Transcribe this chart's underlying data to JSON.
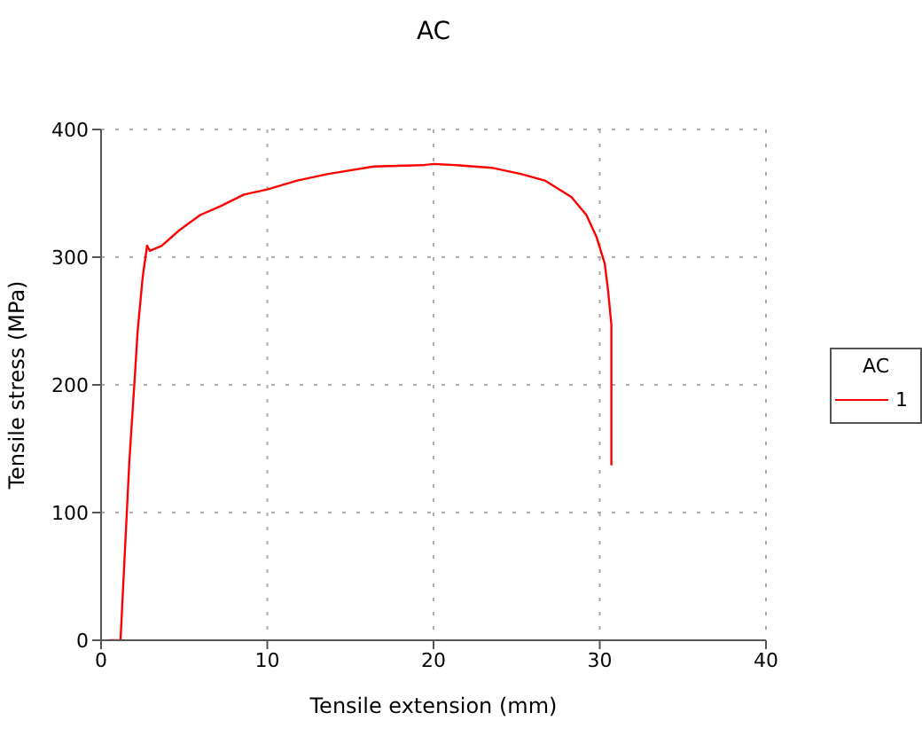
{
  "chart_data": {
    "type": "line",
    "title": "AC",
    "xlabel": "Tensile extension (mm)",
    "ylabel": "Tensile stress (MPa)",
    "legend_title": "AC",
    "legend": "right",
    "grid": true,
    "marker": "none",
    "xlim": [
      0,
      40
    ],
    "xticks": [
      0,
      10,
      20,
      30,
      40
    ],
    "ylim": [
      0,
      400
    ],
    "yticks": [
      0,
      100,
      200,
      300,
      400
    ],
    "series": [
      {
        "name": "1",
        "color": "#ff0000",
        "x": [
          0.5,
          1.17,
          1.7,
          2.0,
          2.2,
          2.5,
          2.77,
          2.94,
          3.65,
          4.7,
          5.96,
          7.2,
          8.6,
          10.0,
          11.8,
          13.6,
          16.4,
          19.3,
          20.0,
          21.4,
          23.5,
          25.3,
          26.7,
          28.3,
          29.2,
          29.8,
          30.3,
          30.5,
          30.7,
          30.7
        ],
        "values": [
          0,
          0,
          140,
          200,
          242,
          284,
          309,
          305,
          309,
          321,
          333,
          340,
          349,
          353,
          360,
          365,
          371,
          372,
          373,
          372,
          370,
          365,
          360,
          347,
          333,
          316,
          295,
          274,
          247,
          137
        ]
      }
    ]
  }
}
